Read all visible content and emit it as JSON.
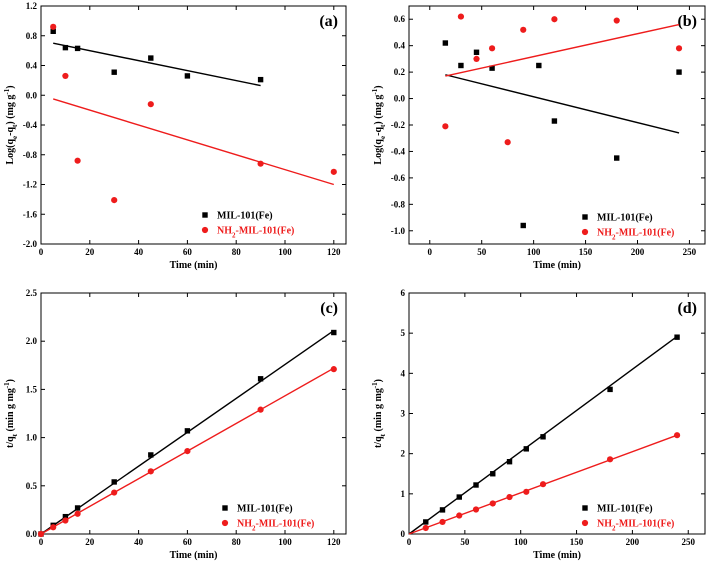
{
  "colors": {
    "mil": "#000000",
    "nh2": "#ee1c1c"
  },
  "chart_data": [
    {
      "id": "a",
      "type": "scatter",
      "panel_label": "(a)",
      "xlabel": "Time (min)",
      "ylabel_parts": [
        "Log(q",
        "e",
        "-q",
        "t",
        ") (mg g",
        "-1",
        ")"
      ],
      "xlim": [
        0,
        125
      ],
      "ylim": [
        -2.0,
        1.2
      ],
      "xticks": [
        0,
        20,
        40,
        60,
        80,
        100,
        120
      ],
      "yticks": [
        -2.0,
        -1.6,
        -1.2,
        -0.8,
        -0.4,
        0.0,
        0.4,
        0.8,
        1.2
      ],
      "ytick_labels": [
        "-2.0",
        "-1.6",
        "-1.2",
        "-0.8",
        "-0.4",
        "0.0",
        "0.4",
        "0.8",
        "1.2"
      ],
      "xtick_labels": [
        "0",
        "20",
        "40",
        "60",
        "80",
        "100",
        "120"
      ],
      "legend": true,
      "series": [
        {
          "name": "MIL-101(Fe)",
          "marker": "square",
          "color_key": "mil",
          "x": [
            5,
            10,
            15,
            30,
            45,
            60,
            90
          ],
          "y": [
            0.86,
            0.64,
            0.63,
            0.31,
            0.5,
            0.26,
            0.21
          ],
          "fit": [
            [
              5,
              0.7
            ],
            [
              90,
              0.13
            ]
          ]
        },
        {
          "name": "NH2-MIL-101(Fe)",
          "marker": "circle",
          "color_key": "nh2",
          "x": [
            5,
            10,
            15,
            30,
            45,
            90,
            120
          ],
          "y": [
            0.92,
            0.26,
            -0.88,
            -1.41,
            -0.12,
            -0.92,
            -1.03
          ],
          "fit": [
            [
              5,
              -0.05
            ],
            [
              120,
              -1.2
            ]
          ]
        }
      ]
    },
    {
      "id": "b",
      "type": "scatter",
      "panel_label": "(b)",
      "xlabel": "Time (min)",
      "ylabel_parts": [
        "Log(q",
        "e",
        "-q",
        "t",
        ") (mg g",
        "-1",
        ")"
      ],
      "xlim": [
        -20,
        265
      ],
      "ylim": [
        -1.1,
        0.7
      ],
      "xticks": [
        0,
        50,
        100,
        150,
        200,
        250
      ],
      "xtick_labels": [
        "0",
        "50",
        "100",
        "150",
        "200",
        "250"
      ],
      "yticks": [
        -1.0,
        -0.8,
        -0.6,
        -0.4,
        -0.2,
        0.0,
        0.2,
        0.4,
        0.6
      ],
      "ytick_labels": [
        "-1.0",
        "-0.8",
        "-0.6",
        "-0.4",
        "-0.2",
        "0.0",
        "0.2",
        "0.4",
        "0.6"
      ],
      "legend": true,
      "series": [
        {
          "name": "MIL-101(Fe)",
          "marker": "square",
          "color_key": "mil",
          "x": [
            15,
            30,
            45,
            60,
            90,
            105,
            120,
            180,
            240
          ],
          "y": [
            0.42,
            0.25,
            0.35,
            0.23,
            -0.96,
            0.25,
            -0.17,
            -0.45,
            0.2
          ],
          "fit": [
            [
              15,
              0.18
            ],
            [
              240,
              -0.26
            ]
          ]
        },
        {
          "name": "NH2-MIL-101(Fe)",
          "marker": "circle",
          "color_key": "nh2",
          "x": [
            15,
            30,
            45,
            60,
            75,
            90,
            120,
            180,
            240
          ],
          "y": [
            -0.21,
            0.62,
            0.3,
            0.38,
            -0.33,
            0.52,
            0.6,
            0.59,
            0.38
          ],
          "fit": [
            [
              15,
              0.17
            ],
            [
              240,
              0.56
            ]
          ]
        }
      ]
    },
    {
      "id": "c",
      "type": "scatter",
      "panel_label": "(c)",
      "xlabel": "Time (min)",
      "ylabel_parts": [
        "t/q",
        "t",
        " (min g mg",
        "-1",
        ")"
      ],
      "xlim": [
        0,
        125
      ],
      "ylim": [
        0,
        2.5
      ],
      "xticks": [
        0,
        20,
        40,
        60,
        80,
        100,
        120
      ],
      "xtick_labels": [
        "0",
        "20",
        "40",
        "60",
        "80",
        "100",
        "120"
      ],
      "yticks": [
        0.0,
        0.5,
        1.0,
        1.5,
        2.0,
        2.5
      ],
      "ytick_labels": [
        "0.0",
        "0.5",
        "1.0",
        "1.5",
        "2.0",
        "2.5"
      ],
      "legend": true,
      "series": [
        {
          "name": "MIL-101(Fe)",
          "marker": "square",
          "color_key": "mil",
          "x": [
            0,
            5,
            10,
            15,
            30,
            45,
            60,
            90,
            120
          ],
          "y": [
            0.0,
            0.09,
            0.18,
            0.27,
            0.54,
            0.82,
            1.07,
            1.61,
            2.09
          ],
          "fit": [
            [
              0,
              0.0
            ],
            [
              120,
              2.11
            ]
          ]
        },
        {
          "name": "NH2-MIL-101(Fe)",
          "marker": "circle",
          "color_key": "nh2",
          "x": [
            0,
            5,
            10,
            15,
            30,
            45,
            60,
            90,
            120
          ],
          "y": [
            0.0,
            0.07,
            0.14,
            0.21,
            0.43,
            0.65,
            0.86,
            1.29,
            1.71
          ],
          "fit": [
            [
              0,
              0.0
            ],
            [
              120,
              1.72
            ]
          ]
        }
      ]
    },
    {
      "id": "d",
      "type": "scatter",
      "panel_label": "(d)",
      "xlabel": "Time (min)",
      "ylabel_parts": [
        "t/q",
        "t",
        " (min g mg",
        "-1",
        ")"
      ],
      "xlim": [
        0,
        265
      ],
      "ylim": [
        0,
        6
      ],
      "xticks": [
        0,
        50,
        100,
        150,
        200,
        250
      ],
      "xtick_labels": [
        "0",
        "50",
        "100",
        "150",
        "200",
        "250"
      ],
      "yticks": [
        0,
        1,
        2,
        3,
        4,
        5,
        6
      ],
      "ytick_labels": [
        "0",
        "1",
        "2",
        "3",
        "4",
        "5",
        "6"
      ],
      "legend": true,
      "series": [
        {
          "name": "MIL-101(Fe)",
          "marker": "square",
          "color_key": "mil",
          "x": [
            15,
            30,
            45,
            60,
            75,
            90,
            105,
            120,
            180,
            240
          ],
          "y": [
            0.3,
            0.6,
            0.92,
            1.22,
            1.5,
            1.8,
            2.12,
            2.42,
            3.6,
            4.9
          ],
          "fit": [
            [
              0,
              0.0
            ],
            [
              240,
              4.92
            ]
          ]
        },
        {
          "name": "NH2-MIL-101(Fe)",
          "marker": "circle",
          "color_key": "nh2",
          "x": [
            15,
            30,
            45,
            60,
            75,
            90,
            105,
            120,
            180,
            240
          ],
          "y": [
            0.15,
            0.3,
            0.46,
            0.61,
            0.76,
            0.92,
            1.05,
            1.24,
            1.86,
            2.46
          ],
          "fit": [
            [
              0,
              0.0
            ],
            [
              240,
              2.46
            ]
          ]
        }
      ]
    }
  ],
  "legend_labels": {
    "mil": "MIL-101(Fe)",
    "nh2_prefix": "NH",
    "nh2_sub": "2",
    "nh2_suffix": "-MIL-101(Fe)"
  }
}
